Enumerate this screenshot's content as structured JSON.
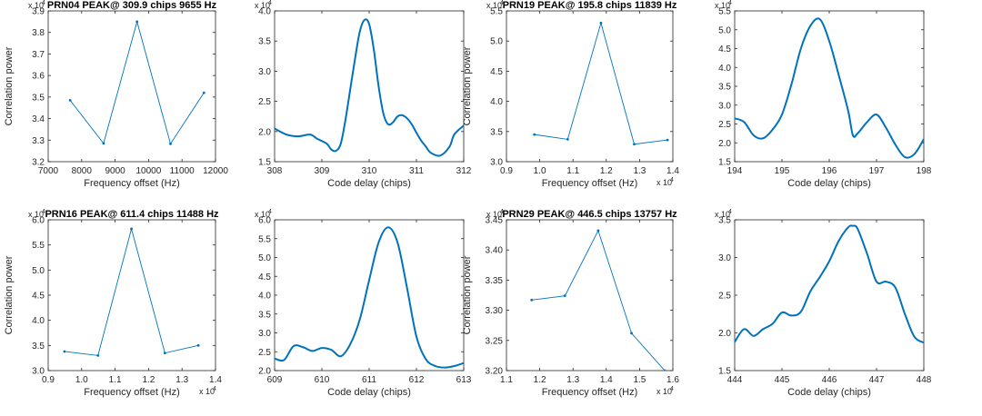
{
  "colors": {
    "line": "#0072BD",
    "axes": "#262626",
    "background": "#ffffff"
  },
  "chart_data": [
    {
      "type": "line",
      "title": "PRN04  PEAK@ 309.9 chips  9655 Hz",
      "xlabel": "Frequency offset (Hz)",
      "ylabel": "Correlation power",
      "xlim": [
        7000,
        12000
      ],
      "ylim": [
        3.2,
        3.9
      ],
      "xticks": [
        "7000",
        "8000",
        "9000",
        "10000",
        "11000",
        "12000"
      ],
      "yticks": [
        "3.2",
        "3.3",
        "3.4",
        "3.5",
        "3.6",
        "3.7",
        "3.8",
        "3.9"
      ],
      "xtick_values": [
        7000,
        8000,
        9000,
        10000,
        11000,
        12000
      ],
      "ytick_values": [
        3.2,
        3.3,
        3.4,
        3.5,
        3.6,
        3.7,
        3.8,
        3.9
      ],
      "y_exponent": "x 10",
      "y_exponent_power": "4",
      "marker": "dot",
      "series": [
        {
          "x": [
            7655,
            8655,
            9655,
            10655,
            11655
          ],
          "y": [
            3.485,
            3.285,
            3.85,
            3.283,
            3.52
          ]
        }
      ]
    },
    {
      "type": "line",
      "title": "",
      "xlabel": "Code delay (chips)",
      "ylabel": "",
      "xlim": [
        308,
        312
      ],
      "ylim": [
        1.5,
        4.0
      ],
      "xticks": [
        "308",
        "309",
        "310",
        "311",
        "312"
      ],
      "yticks": [
        "1.5",
        "2.0",
        "2.5",
        "3.0",
        "3.5",
        "4.0"
      ],
      "xtick_values": [
        308,
        309,
        310,
        311,
        312
      ],
      "ytick_values": [
        1.5,
        2.0,
        2.5,
        3.0,
        3.5,
        4.0
      ],
      "y_exponent": "x 10",
      "y_exponent_power": "4",
      "marker": "none",
      "series": [
        {
          "x": [
            308.0,
            308.25,
            308.5,
            308.75,
            308.9,
            309.1,
            309.2,
            309.3,
            309.4,
            309.5,
            309.6,
            309.7,
            309.8,
            309.9,
            310.0,
            310.1,
            310.2,
            310.3,
            310.4,
            310.5,
            310.6,
            310.7,
            310.8,
            310.9,
            311.0,
            311.1,
            311.2,
            311.3,
            311.5,
            311.7,
            311.8,
            312.0
          ],
          "y": [
            2.05,
            1.95,
            1.92,
            1.95,
            1.88,
            1.8,
            1.7,
            1.68,
            1.8,
            2.2,
            2.7,
            3.2,
            3.65,
            3.85,
            3.78,
            3.35,
            2.75,
            2.3,
            2.12,
            2.15,
            2.25,
            2.27,
            2.22,
            2.12,
            1.98,
            1.85,
            1.75,
            1.65,
            1.6,
            1.75,
            1.95,
            2.1
          ]
        }
      ]
    },
    {
      "type": "line",
      "title": "PRN19  PEAK@ 195.8 chips 11839 Hz",
      "xlabel": "Frequency offset (Hz)",
      "ylabel": "Correlation power",
      "xlim": [
        0.9,
        1.4
      ],
      "ylim": [
        3.0,
        5.5
      ],
      "xticks": [
        "0.9",
        "1.0",
        "1.1",
        "1.2",
        "1.3",
        "1.4"
      ],
      "yticks": [
        "3.0",
        "3.5",
        "4.0",
        "4.5",
        "5.0",
        "5.5"
      ],
      "xtick_values": [
        0.9,
        1.0,
        1.1,
        1.2,
        1.3,
        1.4
      ],
      "ytick_values": [
        3.0,
        3.5,
        4.0,
        4.5,
        5.0,
        5.5
      ],
      "y_exponent": "x 10",
      "y_exponent_power": "4",
      "x_exponent": "x 10",
      "x_exponent_power": "4",
      "marker": "dot",
      "series": [
        {
          "x": [
            0.9839,
            1.0839,
            1.1839,
            1.2839,
            1.3839
          ],
          "y": [
            3.45,
            3.37,
            5.3,
            3.29,
            3.36
          ]
        }
      ]
    },
    {
      "type": "line",
      "title": "",
      "xlabel": "Code delay (chips)",
      "ylabel": "",
      "xlim": [
        194,
        198
      ],
      "ylim": [
        1.5,
        5.5
      ],
      "xticks": [
        "194",
        "195",
        "196",
        "197",
        "198"
      ],
      "yticks": [
        "1.5",
        "2.0",
        "2.5",
        "3.0",
        "3.5",
        "4.0",
        "4.5",
        "5.0",
        "5.5"
      ],
      "xtick_values": [
        194,
        195,
        196,
        197,
        198
      ],
      "ytick_values": [
        1.5,
        2.0,
        2.5,
        3.0,
        3.5,
        4.0,
        4.5,
        5.0,
        5.5
      ],
      "y_exponent": "x 10",
      "y_exponent_power": "4",
      "marker": "none",
      "series": [
        {
          "x": [
            194.0,
            194.2,
            194.4,
            194.6,
            194.8,
            195.0,
            195.2,
            195.4,
            195.6,
            195.8,
            196.0,
            196.2,
            196.4,
            196.5,
            196.6,
            196.8,
            197.0,
            197.2,
            197.4,
            197.6,
            197.8,
            198.0
          ],
          "y": [
            2.65,
            2.55,
            2.2,
            2.12,
            2.35,
            2.75,
            3.55,
            4.5,
            5.1,
            5.28,
            4.7,
            3.8,
            2.85,
            2.2,
            2.25,
            2.55,
            2.75,
            2.4,
            1.95,
            1.62,
            1.7,
            2.1
          ]
        }
      ]
    },
    {
      "type": "line",
      "title": "PRN16  PEAK@ 611.4 chips 11488 Hz",
      "xlabel": "Frequency offset (Hz)",
      "ylabel": "Correlation power",
      "xlim": [
        0.9,
        1.4
      ],
      "ylim": [
        3.0,
        6.0
      ],
      "xticks": [
        "0.9",
        "1.0",
        "1.1",
        "1.2",
        "1.3",
        "1.4"
      ],
      "yticks": [
        "3.0",
        "3.5",
        "4.0",
        "4.5",
        "5.0",
        "5.5",
        "6.0"
      ],
      "xtick_values": [
        0.9,
        1.0,
        1.1,
        1.2,
        1.3,
        1.4
      ],
      "ytick_values": [
        3.0,
        3.5,
        4.0,
        4.5,
        5.0,
        5.5,
        6.0
      ],
      "y_exponent": "x 10",
      "y_exponent_power": "4",
      "x_exponent": "x 10",
      "x_exponent_power": "4",
      "marker": "dot",
      "series": [
        {
          "x": [
            0.9488,
            1.0488,
            1.1488,
            1.2488,
            1.3488
          ],
          "y": [
            3.38,
            3.3,
            5.82,
            3.35,
            3.5
          ]
        }
      ]
    },
    {
      "type": "line",
      "title": "",
      "xlabel": "Code delay (chips)",
      "ylabel": "",
      "xlim": [
        609,
        613
      ],
      "ylim": [
        2.0,
        6.0
      ],
      "xticks": [
        "609",
        "610",
        "611",
        "612",
        "613"
      ],
      "yticks": [
        "2.0",
        "2.5",
        "3.0",
        "3.5",
        "4.0",
        "4.5",
        "5.0",
        "5.5",
        "6.0"
      ],
      "xtick_values": [
        609,
        610,
        611,
        612,
        613
      ],
      "ytick_values": [
        2.0,
        2.5,
        3.0,
        3.5,
        4.0,
        4.5,
        5.0,
        5.5,
        6.0
      ],
      "y_exponent": "x 10",
      "y_exponent_power": "4",
      "marker": "none",
      "series": [
        {
          "x": [
            609.0,
            609.2,
            609.4,
            609.6,
            609.8,
            610.0,
            610.2,
            610.4,
            610.6,
            610.8,
            611.0,
            611.2,
            611.4,
            611.6,
            611.8,
            612.0,
            612.2,
            612.4,
            612.6,
            612.8,
            613.0
          ],
          "y": [
            2.32,
            2.28,
            2.65,
            2.62,
            2.52,
            2.6,
            2.55,
            2.38,
            2.7,
            3.35,
            4.4,
            5.4,
            5.8,
            5.4,
            4.2,
            2.9,
            2.3,
            2.12,
            2.08,
            2.12,
            2.2
          ]
        }
      ]
    },
    {
      "type": "line",
      "title": "PRN29  PEAK@ 446.5 chips 13757 Hz",
      "xlabel": "Frequency offset (Hz)",
      "ylabel": "Correlation power",
      "xlim": [
        1.1,
        1.6
      ],
      "ylim": [
        3.2,
        3.45
      ],
      "xticks": [
        "1.1",
        "1.2",
        "1.3",
        "1.4",
        "1.5",
        "1.6"
      ],
      "yticks": [
        "3.20",
        "3.25",
        "3.30",
        "3.35",
        "3.40",
        "3.45"
      ],
      "xtick_values": [
        1.1,
        1.2,
        1.3,
        1.4,
        1.5,
        1.6
      ],
      "ytick_values": [
        3.2,
        3.25,
        3.3,
        3.35,
        3.4,
        3.45
      ],
      "y_exponent": "x 10",
      "y_exponent_power": "4",
      "x_exponent": "x 10",
      "x_exponent_power": "4",
      "marker": "dot",
      "series": [
        {
          "x": [
            1.1757,
            1.2757,
            1.3757,
            1.4757,
            1.5757
          ],
          "y": [
            3.317,
            3.324,
            3.432,
            3.262,
            3.2
          ]
        }
      ]
    },
    {
      "type": "line",
      "title": "",
      "xlabel": "Code delay (chips)",
      "ylabel": "",
      "xlim": [
        444,
        448
      ],
      "ylim": [
        1.5,
        3.5
      ],
      "xticks": [
        "444",
        "445",
        "446",
        "447",
        "448"
      ],
      "yticks": [
        "1.5",
        "2.0",
        "2.5",
        "3.0",
        "3.5"
      ],
      "xtick_values": [
        444,
        445,
        446,
        447,
        448
      ],
      "ytick_values": [
        1.5,
        2.0,
        2.5,
        3.0,
        3.5
      ],
      "y_exponent": "x 10",
      "y_exponent_power": "4",
      "marker": "none",
      "series": [
        {
          "x": [
            444.0,
            444.2,
            444.4,
            444.6,
            444.8,
            445.0,
            445.2,
            445.4,
            445.6,
            445.8,
            446.0,
            446.2,
            446.4,
            446.5,
            446.6,
            446.8,
            447.0,
            447.2,
            447.4,
            447.6,
            447.8,
            448.0
          ],
          "y": [
            1.88,
            2.05,
            1.96,
            2.05,
            2.12,
            2.27,
            2.23,
            2.28,
            2.55,
            2.74,
            2.95,
            3.22,
            3.4,
            3.42,
            3.38,
            3.05,
            2.68,
            2.68,
            2.6,
            2.25,
            1.95,
            1.87
          ]
        }
      ]
    }
  ]
}
